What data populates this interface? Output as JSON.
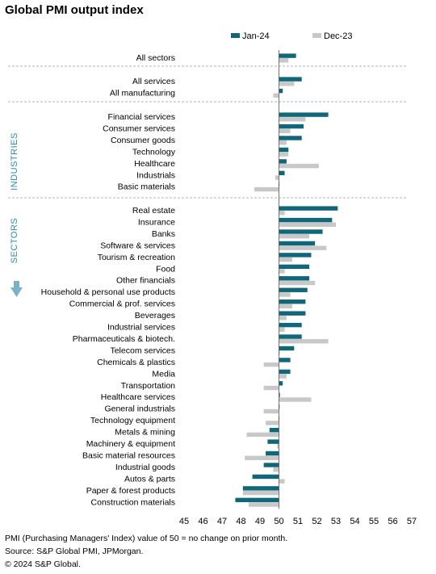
{
  "colors": {
    "series1": "#10677a",
    "series2": "#c8c8c8",
    "group_label": "#2c8ca8",
    "divider": "#9a9a9a"
  },
  "icons": {
    "down_arrow": "down-arrow-icon"
  },
  "group_labels": {
    "industries": "INDUSTRIES",
    "sectors": "SECTORS"
  },
  "footer": {
    "line1": "PMI (Purchasing Managers' Index) value of 50 = no change on prior month.",
    "line2": "Source: S&P Global PMI, JPMorgan.",
    "line3": "© 2024 S&P Global."
  },
  "chart_data": {
    "type": "bar",
    "orientation": "horizontal",
    "title": "Global PMI output index",
    "baseline": 50,
    "xlim": [
      45,
      57
    ],
    "xticks": [
      45,
      46,
      47,
      48,
      49,
      50,
      51,
      52,
      53,
      54,
      55,
      56,
      57
    ],
    "legend_position": "top",
    "categories": [
      "All sectors",
      "All services",
      "All manufacturing",
      "Financial services",
      "Consumer services",
      "Consumer goods",
      "Technology",
      "Healthcare",
      "Industrials",
      "Basic materials",
      "Real estate",
      "Insurance",
      "Banks",
      "Software & services",
      "Tourism & recreation",
      "Food",
      "Other financials",
      "Household & personal use products",
      "Commercial & prof. services",
      "Beverages",
      "Industrial services",
      "Pharmaceuticals & biotech.",
      "Telecom services",
      "Chemicals & plastics",
      "Media",
      "Transportation",
      "Healthcare services",
      "General industrials",
      "Technology equipment",
      "Metals & mining",
      "Machinery & equipment",
      "Basic material resources",
      "Industrial goods",
      "Autos & parts",
      "Paper & forest products",
      "Construction materials"
    ],
    "series": [
      {
        "name": "Jan-24",
        "values": [
          50.9,
          51.2,
          50.2,
          52.6,
          51.3,
          51.2,
          50.5,
          50.4,
          50.3,
          49.98,
          53.1,
          52.8,
          52.3,
          51.9,
          51.7,
          51.6,
          51.6,
          51.5,
          51.4,
          51.4,
          51.2,
          51.2,
          50.8,
          50.6,
          50.6,
          50.2,
          50.05,
          49.99,
          49.98,
          49.5,
          49.4,
          49.3,
          49.2,
          48.6,
          48.1,
          47.7
        ]
      },
      {
        "name": "Dec-23",
        "values": [
          50.5,
          50.8,
          49.7,
          51.4,
          50.6,
          50.4,
          50.5,
          52.1,
          49.8,
          48.7,
          50.3,
          53.0,
          51.6,
          52.5,
          50.7,
          50.3,
          51.9,
          50.6,
          50.7,
          50.4,
          50.3,
          52.6,
          50.05,
          49.2,
          50.4,
          49.2,
          51.7,
          49.2,
          49.3,
          48.3,
          49.9,
          48.2,
          49.7,
          50.3,
          48.1,
          48.4
        ]
      }
    ]
  }
}
